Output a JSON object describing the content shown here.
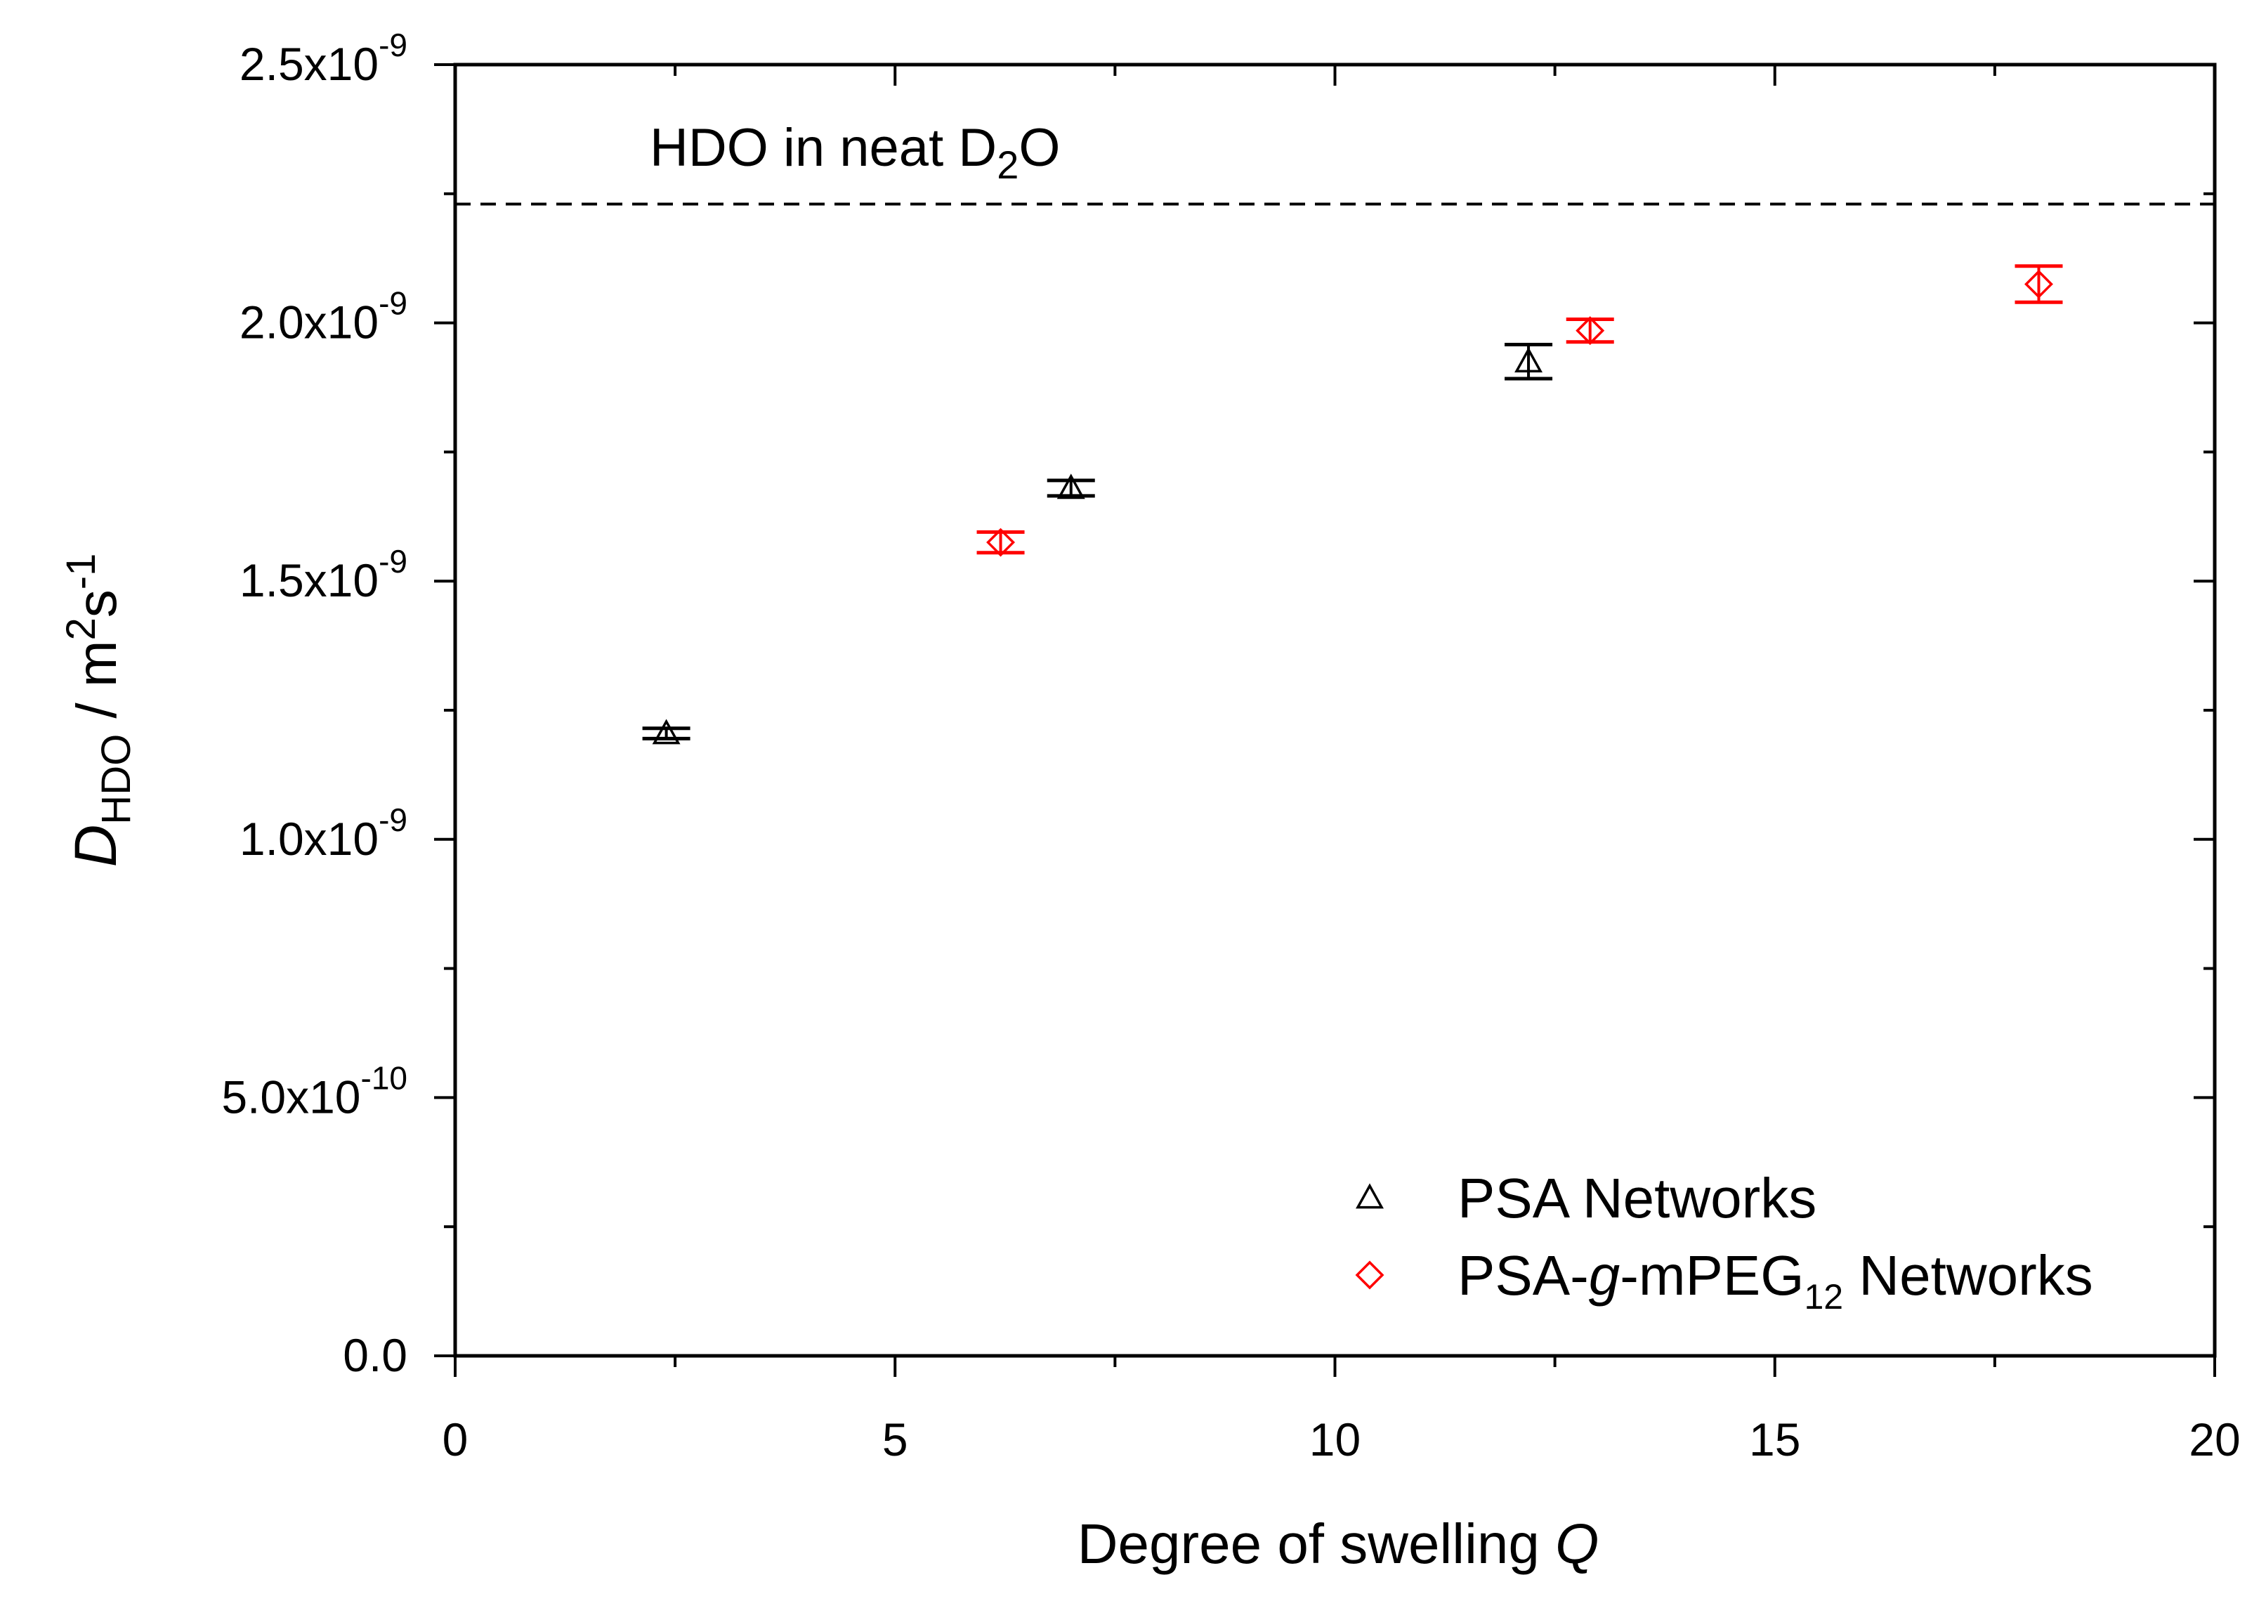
{
  "chart_data": {
    "type": "scatter",
    "xlabel": {
      "main": "Degree of swelling ",
      "var": "Q"
    },
    "ylabel": {
      "var": "D",
      "sub": "HDO",
      "unit_a": " / m",
      "sup1": "2",
      "unit_b": "s",
      "sup2": "-1"
    },
    "xlim": [
      0,
      20
    ],
    "ylim": [
      0,
      2.5e-09
    ],
    "x_ticks": [
      {
        "value": 0,
        "label": "0"
      },
      {
        "value": 5,
        "label": "5"
      },
      {
        "value": 10,
        "label": "10"
      },
      {
        "value": 15,
        "label": "15"
      },
      {
        "value": 20,
        "label": "20"
      }
    ],
    "y_ticks": [
      {
        "value": 0,
        "label": "0.0",
        "exp": ""
      },
      {
        "value": 5e-10,
        "label": "5.0x10",
        "exp": "-10"
      },
      {
        "value": 1e-09,
        "label": "1.0x10",
        "exp": "-9"
      },
      {
        "value": 1.5e-09,
        "label": "1.5x10",
        "exp": "-9"
      },
      {
        "value": 2e-09,
        "label": "2.0x10",
        "exp": "-9"
      },
      {
        "value": 2.5e-09,
        "label": "2.5x10",
        "exp": "-9"
      }
    ],
    "reference_line": {
      "y": 2.23e-09,
      "label": {
        "pre": "HDO in neat D",
        "sub": "2",
        "post": "O"
      }
    },
    "series": [
      {
        "name": "PSA Networks",
        "name_parts": {
          "pre": "PSA Networks",
          "italic": "",
          "mid": "",
          "sub": "",
          "post": ""
        },
        "marker": "triangle",
        "color": "#000000",
        "points": [
          {
            "x": 2.4,
            "y": 1.205e-09,
            "err": 1e-11
          },
          {
            "x": 7.0,
            "y": 1.68e-09,
            "err": 1.5e-11
          },
          {
            "x": 12.2,
            "y": 1.925e-09,
            "err": 3.3e-11
          }
        ]
      },
      {
        "name": "PSA-g-mPEG12 Networks",
        "name_parts": {
          "pre": "PSA-",
          "italic": "g",
          "mid": "-mPEG",
          "sub": "12",
          "post": " Networks"
        },
        "marker": "diamond",
        "color": "#ff0000",
        "points": [
          {
            "x": 6.2,
            "y": 1.575e-09,
            "err": 2e-11
          },
          {
            "x": 12.9,
            "y": 1.985e-09,
            "err": 2.2e-11
          },
          {
            "x": 18.0,
            "y": 2.075e-09,
            "err": 3.5e-11
          }
        ]
      }
    ],
    "legend_position": "bottom-right"
  }
}
